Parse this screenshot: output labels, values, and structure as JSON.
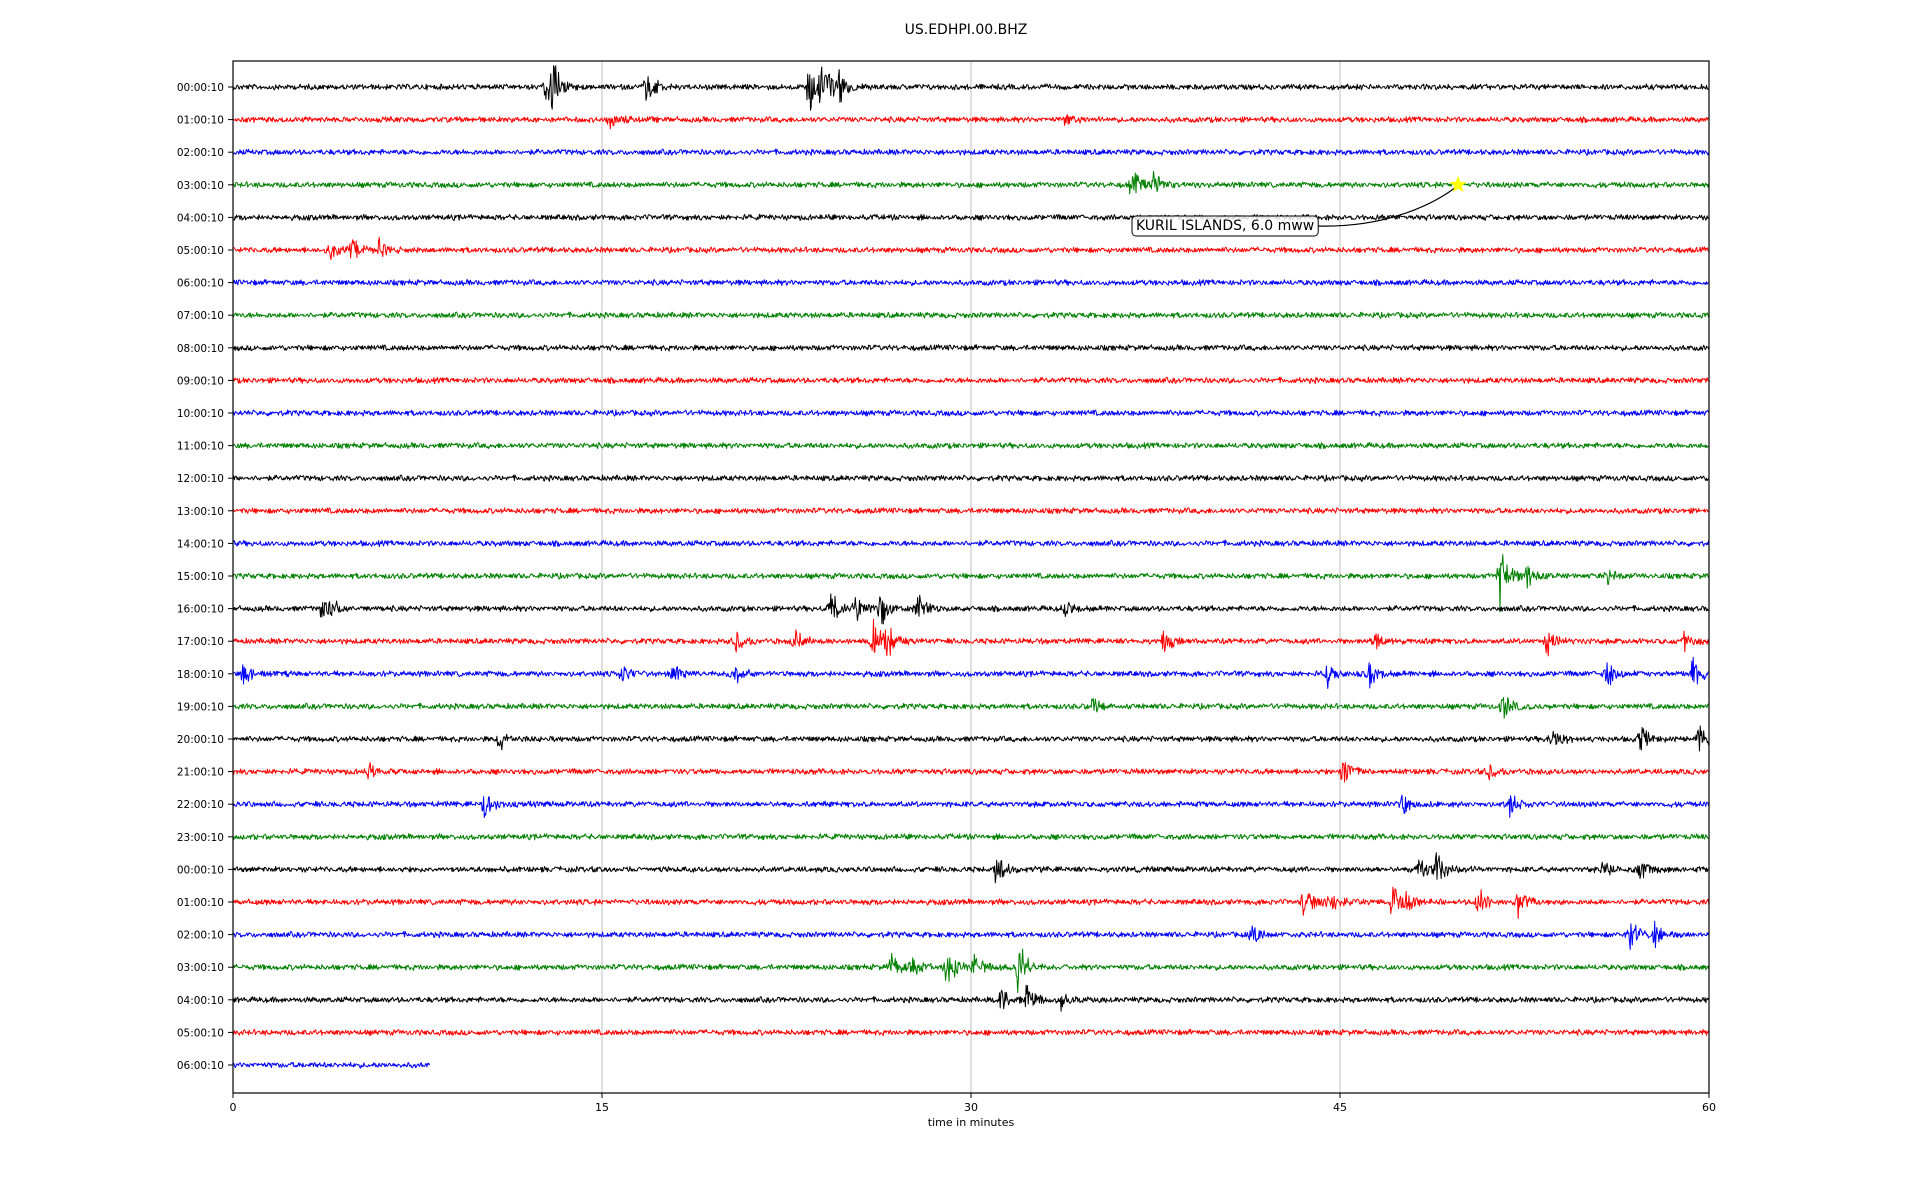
{
  "title": "US.EDHPI.00.BHZ",
  "chart_data": {
    "type": "line",
    "title": "US.EDHPI.00.BHZ",
    "xlabel": "time in minutes",
    "ylabel": "",
    "xlim": [
      0,
      60
    ],
    "xticks": [
      0,
      15,
      30,
      45,
      60
    ],
    "xtick_labels": [
      "0",
      "15",
      "30",
      "45",
      "60"
    ],
    "grid": "vertical lines at x ticks",
    "trace_colors": [
      "#000000",
      "#ff0000",
      "#0000ff",
      "#008000"
    ],
    "rows": [
      {
        "label": "00:00:10",
        "end_min": 60,
        "events": [
          [
            12.7,
            1.0
          ],
          [
            13.0,
            1.4
          ],
          [
            16.8,
            1.2
          ],
          [
            23.4,
            1.8
          ],
          [
            23.9,
            1.6
          ],
          [
            24.6,
            0.8
          ]
        ]
      },
      {
        "label": "01:00:10",
        "end_min": 60,
        "events": [
          [
            15.3,
            0.5
          ],
          [
            33.8,
            0.3
          ]
        ]
      },
      {
        "label": "02:00:10",
        "end_min": 60,
        "events": []
      },
      {
        "label": "03:00:10",
        "end_min": 60,
        "events": [
          [
            36.5,
            0.9
          ],
          [
            37.4,
            0.6
          ]
        ]
      },
      {
        "label": "04:00:10",
        "end_min": 60,
        "events": []
      },
      {
        "label": "05:00:10",
        "end_min": 60,
        "events": [
          [
            3.9,
            0.6
          ],
          [
            4.8,
            0.8
          ],
          [
            5.9,
            0.5
          ]
        ]
      },
      {
        "label": "06:00:10",
        "end_min": 60,
        "events": []
      },
      {
        "label": "07:00:10",
        "end_min": 60,
        "events": []
      },
      {
        "label": "08:00:10",
        "end_min": 60,
        "events": []
      },
      {
        "label": "09:00:10",
        "end_min": 60,
        "events": []
      },
      {
        "label": "10:00:10",
        "end_min": 60,
        "events": []
      },
      {
        "label": "11:00:10",
        "end_min": 60,
        "events": []
      },
      {
        "label": "12:00:10",
        "end_min": 60,
        "events": []
      },
      {
        "label": "13:00:10",
        "end_min": 60,
        "events": []
      },
      {
        "label": "14:00:10",
        "end_min": 60,
        "events": []
      },
      {
        "label": "15:00:10",
        "end_min": 60,
        "events": [
          [
            51.5,
            1.8
          ],
          [
            52.6,
            0.6
          ],
          [
            55.8,
            0.6
          ]
        ]
      },
      {
        "label": "16:00:10",
        "end_min": 60,
        "events": [
          [
            3.6,
            0.6
          ],
          [
            4.0,
            0.5
          ],
          [
            24.3,
            1.0
          ],
          [
            25.3,
            1.0
          ],
          [
            26.3,
            0.9
          ],
          [
            27.8,
            0.8
          ],
          [
            33.8,
            0.4
          ]
        ]
      },
      {
        "label": "17:00:10",
        "end_min": 60,
        "events": [
          [
            20.4,
            0.7
          ],
          [
            22.8,
            0.7
          ],
          [
            26.0,
            1.1
          ],
          [
            26.5,
            0.9
          ],
          [
            37.8,
            0.6
          ],
          [
            46.4,
            0.5
          ],
          [
            53.4,
            0.7
          ],
          [
            59.0,
            0.5
          ]
        ]
      },
      {
        "label": "18:00:10",
        "end_min": 60,
        "events": [
          [
            0.4,
            0.7
          ],
          [
            15.8,
            0.6
          ],
          [
            17.9,
            0.8
          ],
          [
            20.3,
            0.7
          ],
          [
            44.5,
            0.6
          ],
          [
            46.2,
            0.7
          ],
          [
            55.8,
            0.9
          ],
          [
            59.3,
            1.0
          ]
        ]
      },
      {
        "label": "19:00:10",
        "end_min": 60,
        "events": [
          [
            34.9,
            0.5
          ],
          [
            51.6,
            0.8
          ]
        ]
      },
      {
        "label": "20:00:10",
        "end_min": 60,
        "events": [
          [
            10.8,
            0.7
          ],
          [
            53.6,
            0.8
          ],
          [
            57.2,
            0.7
          ],
          [
            59.6,
            0.9
          ]
        ]
      },
      {
        "label": "21:00:10",
        "end_min": 60,
        "events": [
          [
            5.5,
            0.4
          ],
          [
            45.1,
            1.0
          ],
          [
            51.0,
            0.5
          ]
        ]
      },
      {
        "label": "22:00:10",
        "end_min": 60,
        "events": [
          [
            10.2,
            1.0
          ],
          [
            47.5,
            0.6
          ],
          [
            51.9,
            0.7
          ]
        ]
      },
      {
        "label": "23:00:10",
        "end_min": 60,
        "events": []
      },
      {
        "label": "00:00:10",
        "end_min": 60,
        "events": [
          [
            31.0,
            0.9
          ],
          [
            48.2,
            0.6
          ],
          [
            48.9,
            0.9
          ],
          [
            55.7,
            0.5
          ],
          [
            57.2,
            0.7
          ]
        ]
      },
      {
        "label": "01:00:10",
        "end_min": 60,
        "events": [
          [
            43.5,
            1.0
          ],
          [
            44.5,
            0.9
          ],
          [
            47.1,
            0.9
          ],
          [
            47.6,
            0.8
          ],
          [
            50.6,
            0.9
          ],
          [
            52.2,
            1.0
          ]
        ]
      },
      {
        "label": "02:00:10",
        "end_min": 60,
        "events": [
          [
            41.4,
            0.6
          ],
          [
            56.8,
            1.0
          ],
          [
            57.8,
            0.7
          ]
        ]
      },
      {
        "label": "03:00:10",
        "end_min": 60,
        "events": [
          [
            26.7,
            0.7
          ],
          [
            27.6,
            0.6
          ],
          [
            29.0,
            1.2
          ],
          [
            30.1,
            0.9
          ],
          [
            31.9,
            1.5
          ]
        ]
      },
      {
        "label": "04:00:10",
        "end_min": 60,
        "events": [
          [
            31.2,
            0.8
          ],
          [
            32.2,
            1.0
          ],
          [
            33.6,
            0.6
          ]
        ]
      },
      {
        "label": "05:00:10",
        "end_min": 60,
        "events": []
      },
      {
        "label": "06:00:10",
        "end_min": 8,
        "events": []
      }
    ],
    "annotation": {
      "text": "KURIL ISLANDS, 6.0 mww",
      "row": 3,
      "x_min": 49.8,
      "marker": "star",
      "marker_color": "#ffff00"
    }
  }
}
